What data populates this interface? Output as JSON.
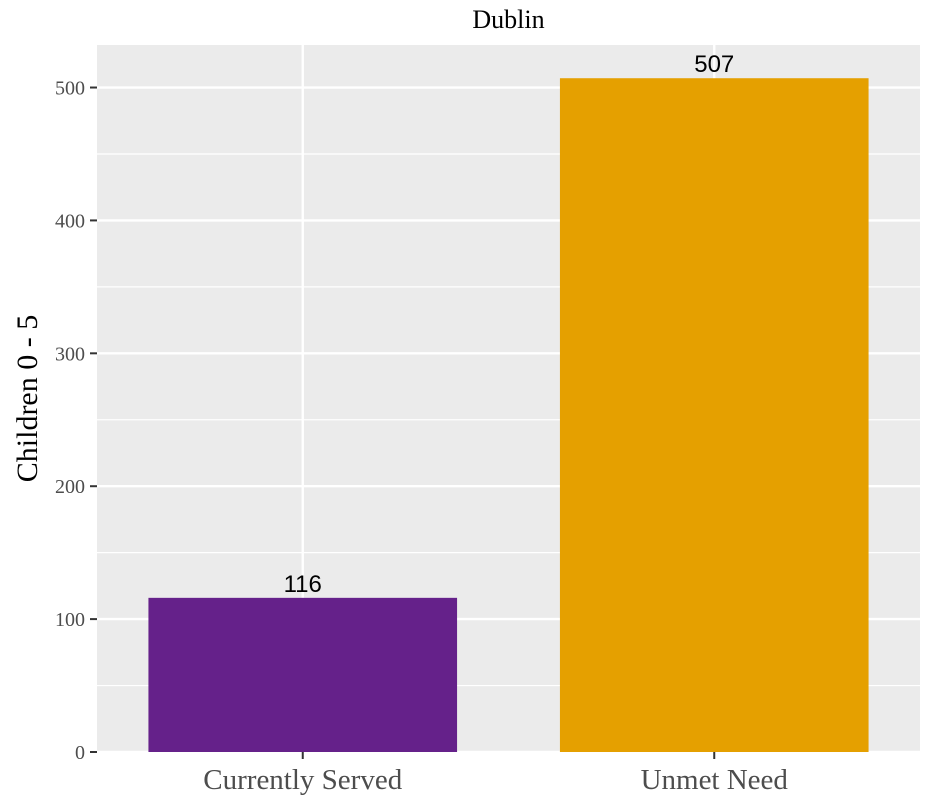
{
  "chart_data": {
    "type": "bar",
    "title": "Dublin",
    "xlabel": "",
    "ylabel": "Children 0 - 5",
    "categories": [
      "Currently Served",
      "Unmet Need"
    ],
    "values": [
      116,
      507
    ],
    "data_labels": [
      "116",
      "507"
    ],
    "bar_colors": [
      "#65218A",
      "#E5A000"
    ],
    "ylim": [
      0,
      532
    ],
    "y_ticks": [
      0,
      100,
      200,
      300,
      400,
      500
    ],
    "y_tick_labels": [
      "0",
      "100",
      "200",
      "300",
      "400",
      "500"
    ],
    "grid": true,
    "panel_background": "#EBEBEB",
    "grid_color": "#FFFFFF",
    "legend": "none"
  }
}
